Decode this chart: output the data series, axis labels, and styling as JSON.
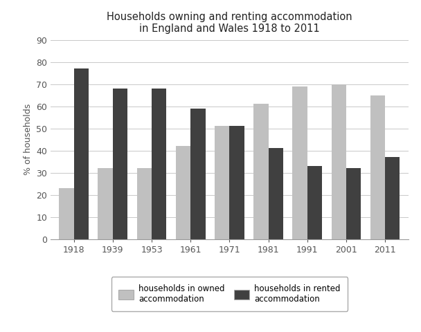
{
  "title": "Households owning and renting accommodation\nin England and Wales 1918 to 2011",
  "ylabel": "% of households",
  "categories": [
    "1918",
    "1939",
    "1953",
    "1961",
    "1971",
    "1981",
    "1991",
    "2001",
    "2011"
  ],
  "owned": [
    23,
    32,
    32,
    42,
    51,
    61,
    69,
    70,
    65
  ],
  "rented": [
    77,
    68,
    68,
    59,
    51,
    41,
    33,
    32,
    37
  ],
  "owned_color": "#c0c0c0",
  "rented_color": "#404040",
  "ylim": [
    0,
    90
  ],
  "yticks": [
    0,
    10,
    20,
    30,
    40,
    50,
    60,
    70,
    80,
    90
  ],
  "bar_width": 0.38,
  "legend_owned": "households in owned\naccommodation",
  "legend_rented": "households in rented\naccommodation",
  "background_color": "#ffffff",
  "grid_color": "#c8c8c8",
  "title_fontsize": 10.5,
  "label_fontsize": 9,
  "tick_fontsize": 9,
  "legend_fontsize": 8.5
}
